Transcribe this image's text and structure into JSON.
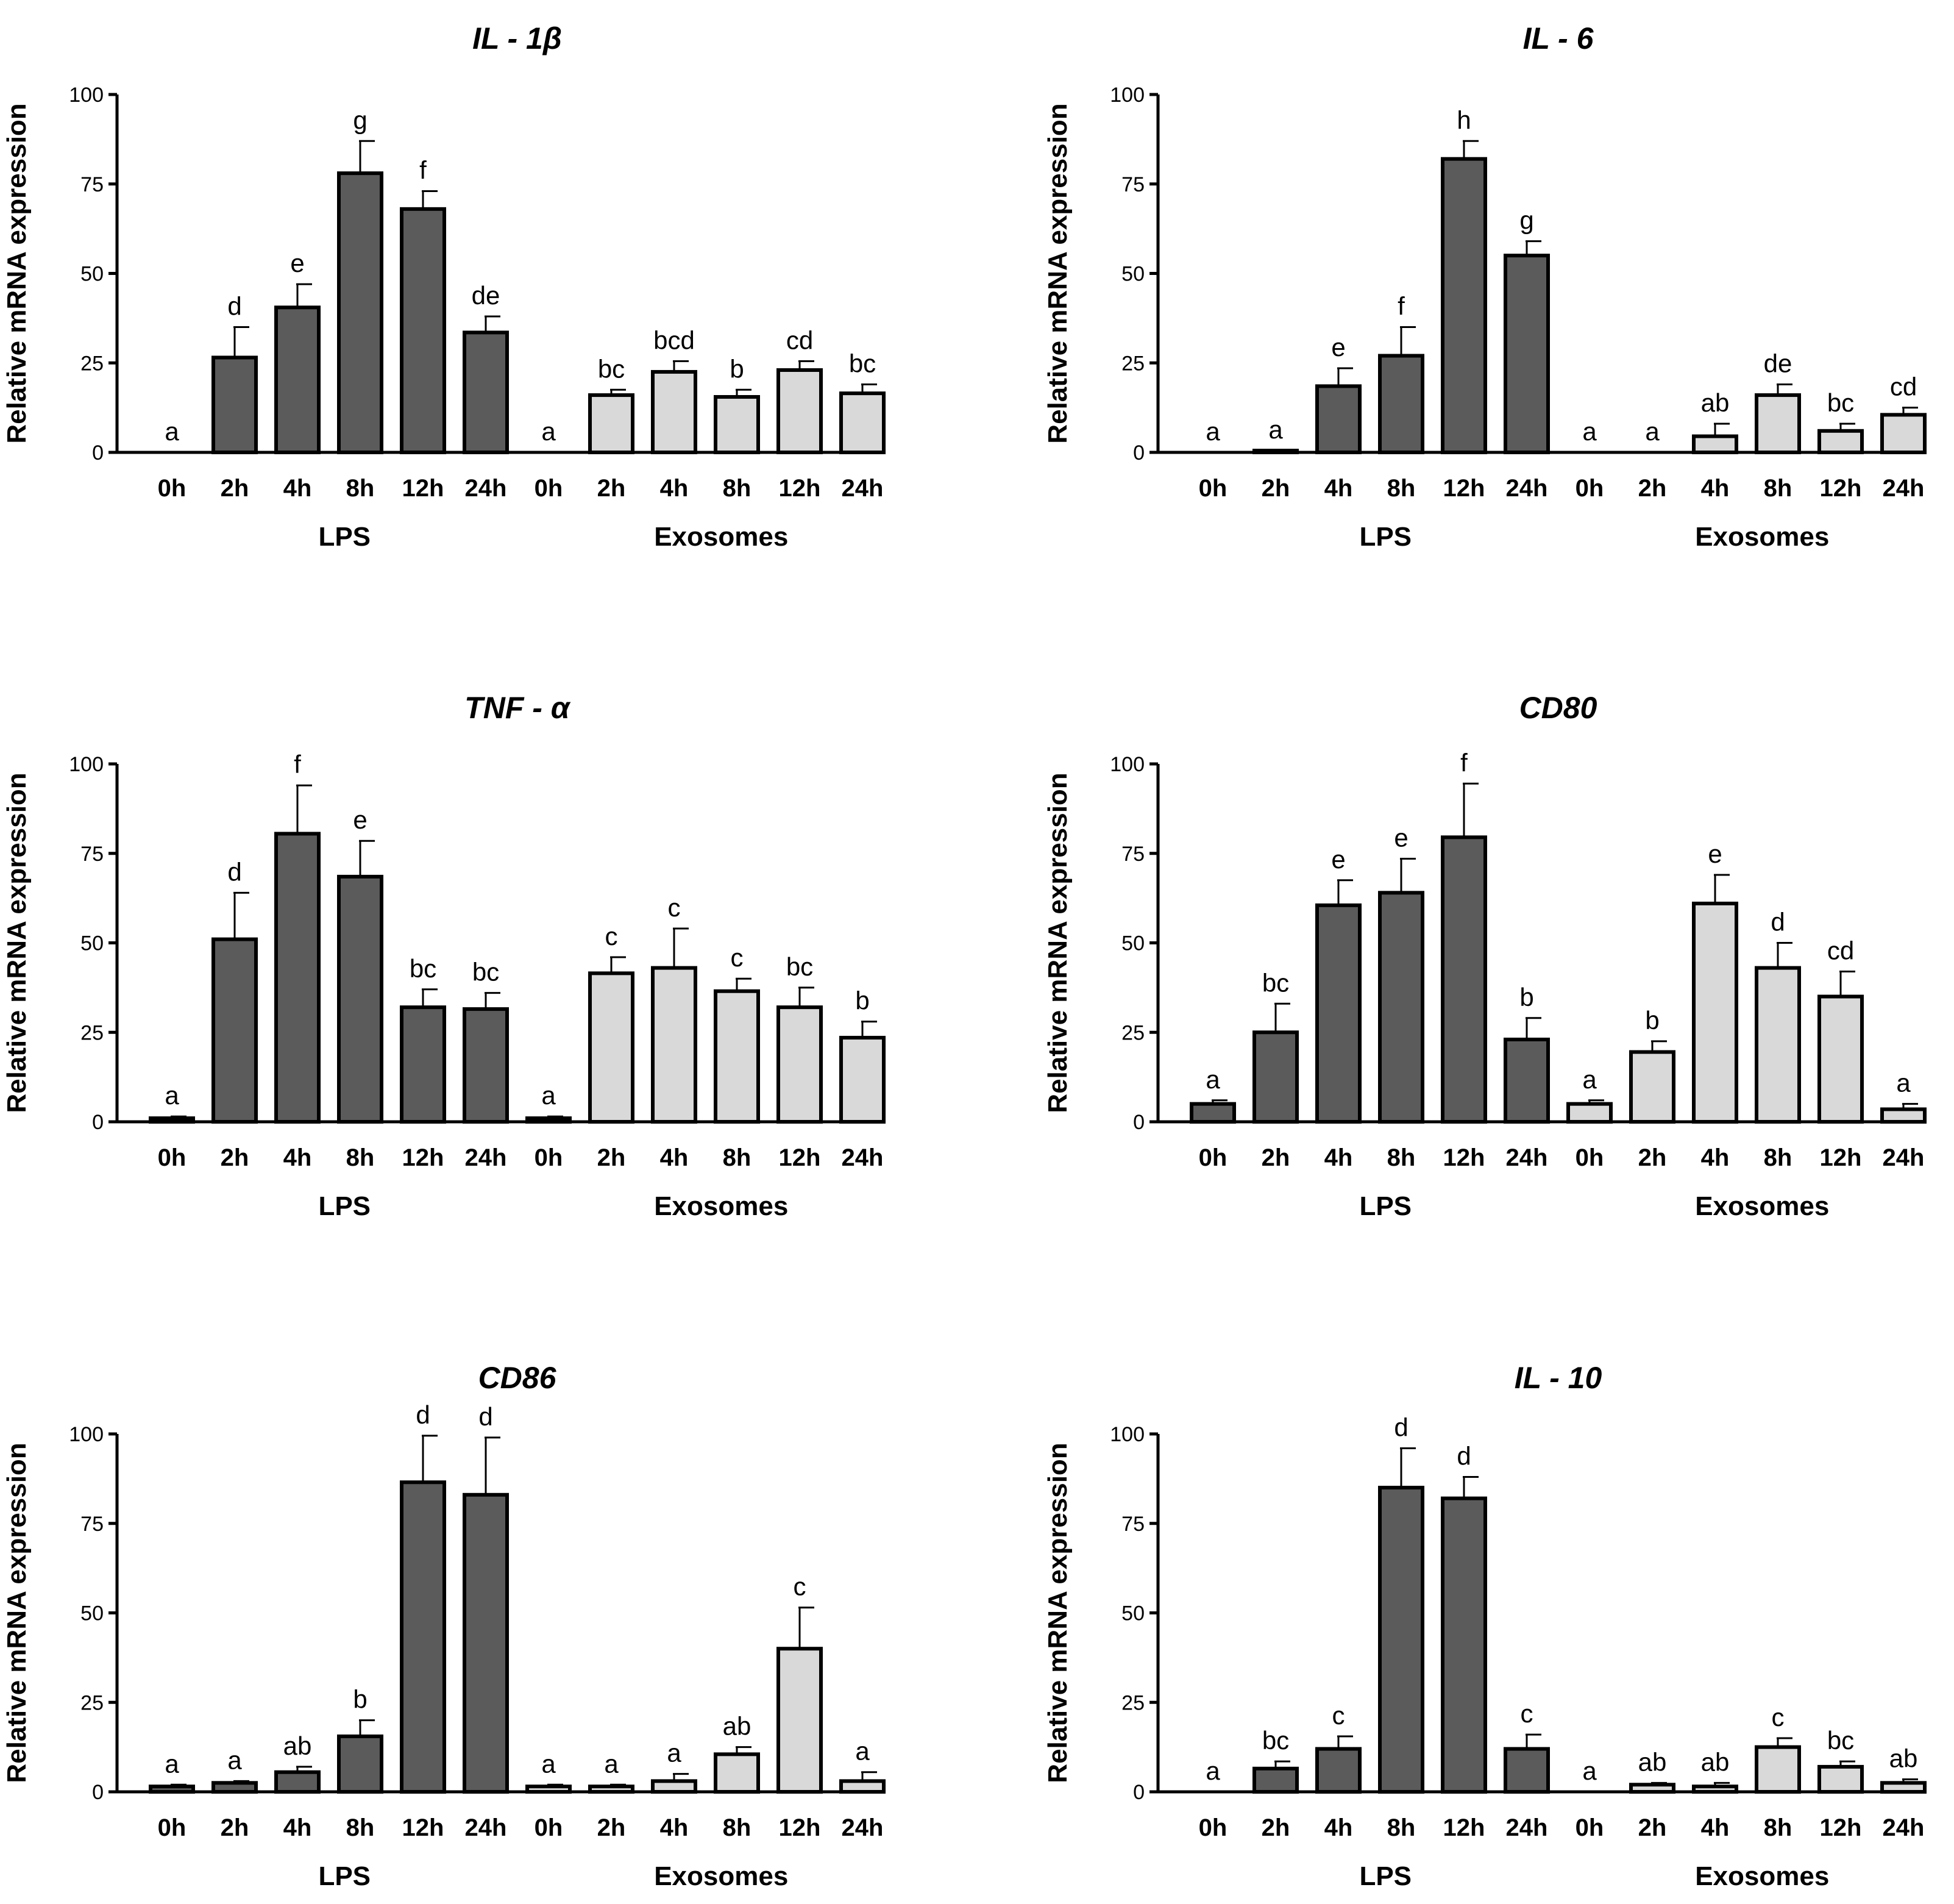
{
  "colors": {
    "lps": "#5b5b5b",
    "exosomes": "#d9d9d9",
    "ink": "#000000",
    "background": "#ffffff"
  },
  "chart_data": [
    {
      "type": "bar",
      "title": "IL - 1β",
      "ylabel": "Relative mRNA expression",
      "ylim": [
        0,
        100
      ],
      "yticks": [
        0,
        25,
        50,
        75,
        100
      ],
      "groups": [
        "LPS",
        "Exosomes"
      ],
      "categories": [
        "0h",
        "2h",
        "4h",
        "8h",
        "12h",
        "24h"
      ],
      "series": [
        {
          "name": "LPS",
          "color": "#5b5b5b",
          "values": [
            0,
            26.5,
            40.5,
            78,
            68,
            33.5
          ],
          "errors": [
            0,
            8.5,
            6.5,
            9,
            5,
            4.5
          ],
          "letters": [
            "a",
            "d",
            "e",
            "g",
            "f",
            "de"
          ]
        },
        {
          "name": "Exosomes",
          "color": "#d9d9d9",
          "values": [
            0,
            16,
            22.5,
            15.5,
            23,
            16.5
          ],
          "errors": [
            0,
            1.5,
            3,
            2,
            2.5,
            2.5
          ],
          "letters": [
            "a",
            "bc",
            "bcd",
            "b",
            "cd",
            "bc"
          ]
        }
      ]
    },
    {
      "type": "bar",
      "title": "IL - 6",
      "ylabel": "Relative mRNA expression",
      "ylim": [
        0,
        100
      ],
      "yticks": [
        0,
        25,
        50,
        75,
        100
      ],
      "groups": [
        "LPS",
        "Exosomes"
      ],
      "categories": [
        "0h",
        "2h",
        "4h",
        "8h",
        "12h",
        "24h"
      ],
      "series": [
        {
          "name": "LPS",
          "color": "#5b5b5b",
          "values": [
            0,
            0.5,
            18.5,
            27,
            82,
            55
          ],
          "errors": [
            0,
            0,
            5,
            8,
            5,
            4
          ],
          "letters": [
            "a",
            "a",
            "e",
            "f",
            "h",
            "g"
          ]
        },
        {
          "name": "Exosomes",
          "color": "#d9d9d9",
          "values": [
            0,
            0,
            4.5,
            16,
            6,
            10.5
          ],
          "errors": [
            0,
            0,
            3.5,
            3,
            2,
            2
          ],
          "letters": [
            "a",
            "a",
            "ab",
            "de",
            "bc",
            "cd"
          ]
        }
      ]
    },
    {
      "type": "bar",
      "title": "TNF - α",
      "ylabel": "Relative mRNA expression",
      "ylim": [
        0,
        100
      ],
      "yticks": [
        0,
        25,
        50,
        75,
        100
      ],
      "groups": [
        "LPS",
        "Exosomes"
      ],
      "categories": [
        "0h",
        "2h",
        "4h",
        "8h",
        "12h",
        "24h"
      ],
      "series": [
        {
          "name": "LPS",
          "color": "#5b5b5b",
          "values": [
            1,
            51,
            80.5,
            68.5,
            32,
            31.5
          ],
          "errors": [
            0.5,
            13,
            13.5,
            10,
            5,
            4.5
          ],
          "letters": [
            "a",
            "d",
            "f",
            "e",
            "bc",
            "bc"
          ]
        },
        {
          "name": "Exosomes",
          "color": "#d9d9d9",
          "values": [
            1,
            41.5,
            43,
            36.5,
            32,
            23.5
          ],
          "errors": [
            0.5,
            4.5,
            11,
            3.5,
            5.5,
            4.5
          ],
          "letters": [
            "a",
            "c",
            "c",
            "c",
            "bc",
            "b"
          ]
        }
      ]
    },
    {
      "type": "bar",
      "title": "CD80",
      "ylabel": "Relative mRNA expression",
      "ylim": [
        0,
        100
      ],
      "yticks": [
        0,
        25,
        50,
        75,
        100
      ],
      "groups": [
        "LPS",
        "Exosomes"
      ],
      "categories": [
        "0h",
        "2h",
        "4h",
        "8h",
        "12h",
        "24h"
      ],
      "series": [
        {
          "name": "LPS",
          "color": "#5b5b5b",
          "values": [
            5,
            25,
            60.5,
            64,
            79.5,
            23
          ],
          "errors": [
            1,
            8,
            7,
            9.5,
            15,
            6
          ],
          "letters": [
            "a",
            "bc",
            "e",
            "e",
            "f",
            "b"
          ]
        },
        {
          "name": "Exosomes",
          "color": "#d9d9d9",
          "values": [
            5,
            19.5,
            61,
            43,
            35,
            3.5
          ],
          "errors": [
            1,
            3,
            8,
            7,
            7,
            1.5
          ],
          "letters": [
            "a",
            "b",
            "e",
            "d",
            "cd",
            "a"
          ]
        }
      ]
    },
    {
      "type": "bar",
      "title": "CD86",
      "ylabel": "Relative mRNA expression",
      "ylim": [
        0,
        100
      ],
      "yticks": [
        0,
        25,
        50,
        75,
        100
      ],
      "groups": [
        "LPS",
        "Exosomes"
      ],
      "categories": [
        "0h",
        "2h",
        "4h",
        "8h",
        "12h",
        "24h"
      ],
      "series": [
        {
          "name": "LPS",
          "color": "#5b5b5b",
          "values": [
            1.5,
            2.5,
            5.5,
            15.5,
            86.5,
            83
          ],
          "errors": [
            0.5,
            0.5,
            1.5,
            4.5,
            13,
            16
          ],
          "letters": [
            "a",
            "a",
            "ab",
            "b",
            "d",
            "d"
          ]
        },
        {
          "name": "Exosomes",
          "color": "#d9d9d9",
          "values": [
            1.5,
            1.5,
            3,
            10.5,
            40,
            3
          ],
          "errors": [
            0.5,
            0.5,
            2,
            2,
            11.5,
            2.5
          ],
          "letters": [
            "a",
            "a",
            "a",
            "ab",
            "c",
            "a"
          ]
        }
      ]
    },
    {
      "type": "bar",
      "title": "IL - 10",
      "ylabel": "Relative mRNA expression",
      "ylim": [
        0,
        100
      ],
      "yticks": [
        0,
        25,
        50,
        75,
        100
      ],
      "groups": [
        "LPS",
        "Exosomes"
      ],
      "categories": [
        "0h",
        "2h",
        "4h",
        "8h",
        "12h",
        "24h"
      ],
      "series": [
        {
          "name": "LPS",
          "color": "#5b5b5b",
          "values": [
            0,
            6.5,
            12,
            85,
            82,
            12
          ],
          "errors": [
            0,
            2,
            3.5,
            11,
            6,
            4
          ],
          "letters": [
            "a",
            "bc",
            "c",
            "d",
            "d",
            "c"
          ]
        },
        {
          "name": "Exosomes",
          "color": "#d9d9d9",
          "values": [
            0,
            2,
            1.5,
            12.5,
            7,
            2.5
          ],
          "errors": [
            0,
            0.5,
            1,
            2.5,
            1.5,
            1
          ],
          "letters": [
            "a",
            "ab",
            "ab",
            "c",
            "bc",
            "ab"
          ]
        }
      ]
    }
  ]
}
